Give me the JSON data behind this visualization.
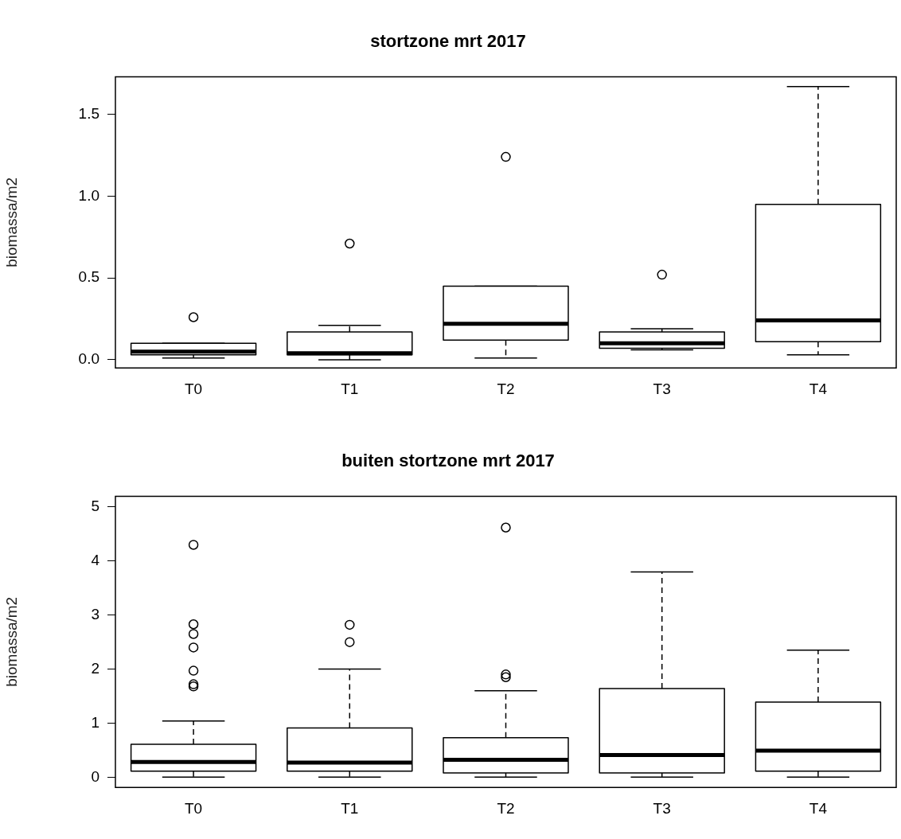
{
  "chart_data": [
    {
      "type": "box",
      "title": "stortzone mrt 2017",
      "ylabel": "biomassa/m2",
      "categories": [
        "T0",
        "T1",
        "T2",
        "T3",
        "T4"
      ],
      "ylim": [
        -0.05,
        1.73
      ],
      "yticks": [
        {
          "value": 0,
          "label": "0.0"
        },
        0.5,
        {
          "value": 1,
          "label": "1.0"
        },
        1.5
      ],
      "grid": false,
      "boxes": [
        {
          "low": 0.01,
          "q1": 0.03,
          "median": 0.05,
          "q3": 0.1,
          "high": 0.1,
          "outliers": [
            0.26
          ]
        },
        {
          "low": 0.0,
          "q1": 0.03,
          "median": 0.04,
          "q3": 0.17,
          "high": 0.21,
          "outliers": [
            0.71
          ]
        },
        {
          "low": 0.01,
          "q1": 0.12,
          "median": 0.22,
          "q3": 0.45,
          "high": 0.45,
          "outliers": [
            1.24
          ]
        },
        {
          "low": 0.06,
          "q1": 0.07,
          "median": 0.1,
          "q3": 0.17,
          "high": 0.19,
          "outliers": [
            0.52
          ]
        },
        {
          "low": 0.03,
          "q1": 0.11,
          "median": 0.24,
          "q3": 0.95,
          "high": 1.67
        }
      ]
    },
    {
      "type": "box",
      "title": "buiten stortzone mrt 2017",
      "ylabel": "biomassa/m2",
      "categories": [
        "T0",
        "T1",
        "T2",
        "T3",
        "T4"
      ],
      "ylim": [
        -0.19,
        5.2
      ],
      "yticks": [
        0,
        1,
        2,
        3,
        4,
        5
      ],
      "grid": false,
      "boxes": [
        {
          "low": 0,
          "q1": 0.11,
          "median": 0.28,
          "q3": 0.61,
          "high": 1.04,
          "outliers": [
            4.3,
            2.83,
            2.65,
            2.4,
            1.97,
            1.72,
            1.68
          ]
        },
        {
          "low": 0,
          "q1": 0.11,
          "median": 0.27,
          "q3": 0.91,
          "high": 2.0,
          "outliers": [
            2.82,
            2.5
          ]
        },
        {
          "low": 0,
          "q1": 0.08,
          "median": 0.32,
          "q3": 0.73,
          "high": 1.6,
          "outliers": [
            1.85,
            1.9,
            4.62
          ]
        },
        {
          "low": 0,
          "q1": 0.08,
          "median": 0.41,
          "q3": 1.64,
          "high": 3.8
        },
        {
          "low": 0,
          "q1": 0.11,
          "median": 0.49,
          "q3": 1.39,
          "high": 2.35
        }
      ]
    }
  ]
}
